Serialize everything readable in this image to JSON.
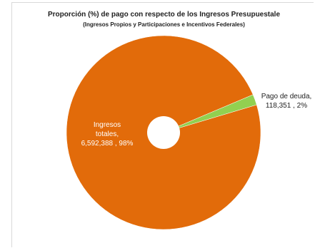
{
  "chart_data": {
    "type": "pie",
    "title": "Proporción (%) de pago con respecto de los Ingresos Presupuestale",
    "subtitle": "(Ingresos Propios  y Participaciones  e Incentivos Federales)",
    "slices": [
      {
        "name": "Ingresos totales",
        "value": 6592388,
        "percent": 98,
        "color": "#E26B0A",
        "label_lines": [
          "Ingresos",
          "totales,",
          "6,592,388 , 98%"
        ]
      },
      {
        "name": "Pago de deuda",
        "value": 118351,
        "percent": 2,
        "color": "#92D050",
        "label_lines": [
          "Pago de deuda,",
          "118,351 , 2%"
        ]
      }
    ],
    "legend": "none"
  }
}
